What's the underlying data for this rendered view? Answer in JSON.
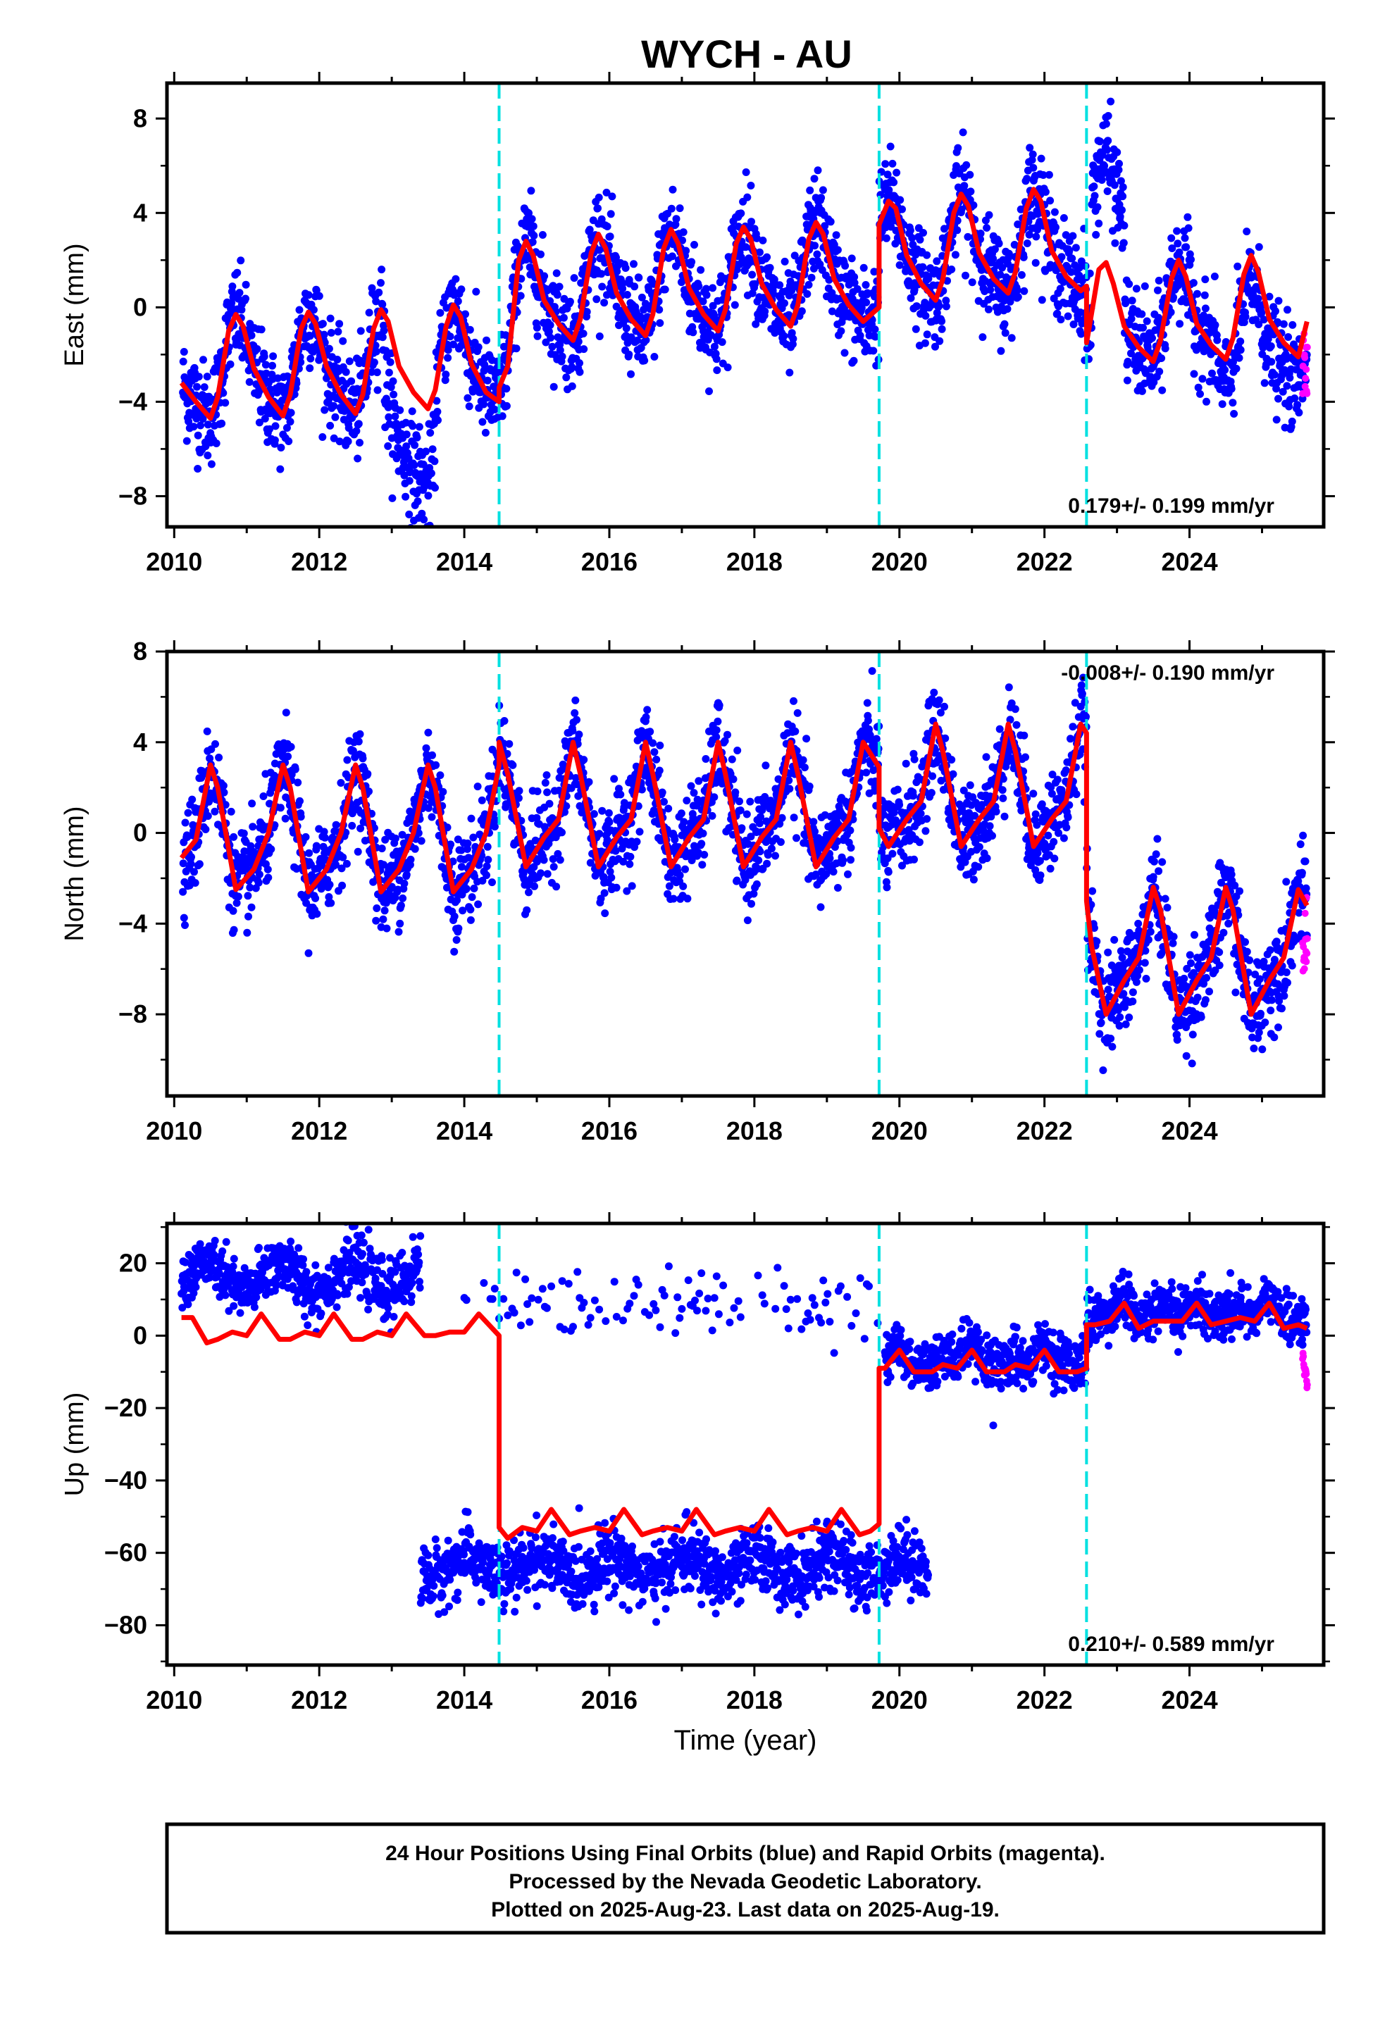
{
  "chart_data": {
    "type": "scatter",
    "title": "WYCH - AU",
    "xlabel": "Time (year)",
    "x_tick_labels": [
      "2010",
      "2012",
      "2014",
      "2016",
      "2018",
      "2020",
      "2022",
      "2024"
    ],
    "x_range": [
      2009.9,
      2025.85
    ],
    "offset_epochs": [
      2014.48,
      2019.72,
      2022.58
    ],
    "colors": {
      "final_orbits": "#0000ff",
      "rapid_orbits": "#ff00ff",
      "model": "#ff0000",
      "offsets": "#00e0e0"
    },
    "panels": [
      {
        "id": "east",
        "ylabel": "East (mm)",
        "ylim": [
          -9.3,
          9.5
        ],
        "y_tick_labels": [
          "8",
          "4",
          "0",
          "−4",
          "−8"
        ],
        "y_ticks": [
          8,
          4,
          0,
          -4,
          -8
        ],
        "rate": "0.179+/- 0.199 mm/yr",
        "rate_position": "bottom-right",
        "model_segments": [
          {
            "x": [
              2010.1,
              2010.3,
              2010.5,
              2010.6,
              2010.75,
              2010.85,
              2010.95,
              2011.1,
              2011.3,
              2011.5,
              2011.6,
              2011.75,
              2011.85,
              2011.95,
              2012.1,
              2012.3,
              2012.5,
              2012.6,
              2012.75,
              2012.85,
              2012.95,
              2013.1,
              2013.3,
              2013.5,
              2013.6,
              2013.75,
              2013.85,
              2013.95,
              2014.1,
              2014.3,
              2014.48
            ],
            "y": [
              -3.2,
              -4.0,
              -4.7,
              -3.8,
              -1.0,
              -0.3,
              -0.8,
              -2.6,
              -3.8,
              -4.6,
              -3.7,
              -0.9,
              -0.2,
              -0.7,
              -2.5,
              -3.7,
              -4.5,
              -3.7,
              -0.9,
              -0.1,
              -0.6,
              -2.5,
              -3.6,
              -4.3,
              -3.5,
              -0.8,
              0.1,
              -0.4,
              -2.4,
              -3.6,
              -4.0
            ]
          },
          {
            "x": [
              2014.48,
              2014.6,
              2014.75,
              2014.85,
              2014.95,
              2015.1,
              2015.3,
              2015.5,
              2015.6,
              2015.75,
              2015.85,
              2015.95,
              2016.1,
              2016.3,
              2016.5,
              2016.6,
              2016.75,
              2016.85,
              2016.95,
              2017.1,
              2017.3,
              2017.5,
              2017.6,
              2017.75,
              2017.85,
              2017.95,
              2018.1,
              2018.3,
              2018.5,
              2018.6,
              2018.75,
              2018.85,
              2018.95,
              2019.1,
              2019.3,
              2019.5,
              2019.72
            ],
            "y": [
              -3.4,
              -2.5,
              2.0,
              2.8,
              2.2,
              0.3,
              -0.7,
              -1.4,
              -0.5,
              2.3,
              3.1,
              2.5,
              0.6,
              -0.5,
              -1.2,
              -0.3,
              2.5,
              3.3,
              2.7,
              0.8,
              -0.3,
              -1.0,
              -0.1,
              2.7,
              3.4,
              2.9,
              1.0,
              -0.1,
              -0.8,
              0.1,
              2.9,
              3.6,
              3.1,
              1.2,
              0.1,
              -0.6,
              0.0
            ]
          },
          {
            "x": [
              2019.72,
              2019.85,
              2019.95,
              2020.1,
              2020.3,
              2020.5,
              2020.6,
              2020.75,
              2020.85,
              2020.95,
              2021.1,
              2021.3,
              2021.5,
              2021.6,
              2021.75,
              2021.85,
              2021.95,
              2022.1,
              2022.3,
              2022.5,
              2022.58
            ],
            "y": [
              3.5,
              4.5,
              4.2,
              2.2,
              1.0,
              0.3,
              1.2,
              4.0,
              4.8,
              4.3,
              2.3,
              1.2,
              0.6,
              1.5,
              4.2,
              5.0,
              4.5,
              2.4,
              1.3,
              0.7,
              0.9
            ]
          },
          {
            "x": [
              2022.58,
              2022.62,
              2022.75,
              2022.85,
              2022.95,
              2023.1,
              2023.3,
              2023.5,
              2023.6,
              2023.75,
              2023.85,
              2023.95,
              2024.1,
              2024.3,
              2024.5,
              2024.6,
              2024.75,
              2024.85,
              2024.95,
              2025.1,
              2025.3,
              2025.5,
              2025.62
            ],
            "y": [
              -1.5,
              -0.8,
              1.6,
              1.9,
              1.0,
              -0.8,
              -1.7,
              -2.3,
              -1.4,
              1.2,
              2.0,
              1.3,
              -0.7,
              -1.6,
              -2.2,
              -1.3,
              1.4,
              2.2,
              1.5,
              -0.5,
              -1.5,
              -2.1,
              -0.6
            ]
          }
        ]
      },
      {
        "id": "north",
        "ylabel": "North (mm)",
        "ylim": [
          -11.6,
          8.0
        ],
        "y_tick_labels": [
          "8",
          "4",
          "0",
          "−4",
          "−8"
        ],
        "y_ticks": [
          8,
          4,
          0,
          -4,
          -8
        ],
        "rate": "-0.008+/- 0.190 mm/yr",
        "rate_position": "top-right",
        "model_segments": [
          {
            "x": [
              2010.1,
              2010.3,
              2010.5,
              2010.6,
              2010.85,
              2011.1,
              2011.3,
              2011.5,
              2011.6,
              2011.85,
              2012.1,
              2012.3,
              2012.5,
              2012.6,
              2012.85,
              2013.1,
              2013.3,
              2013.5,
              2013.6,
              2013.85,
              2014.1,
              2014.3,
              2014.48
            ],
            "y": [
              -1.1,
              -0.3,
              3.0,
              2.0,
              -2.5,
              -1.6,
              0.0,
              3.0,
              2.0,
              -2.6,
              -1.6,
              0.0,
              3.0,
              2.0,
              -2.6,
              -1.6,
              0.0,
              3.0,
              2.0,
              -2.6,
              -1.6,
              0.0,
              3.0
            ]
          },
          {
            "x": [
              2014.48,
              2014.6,
              2014.85,
              2015.1,
              2015.3,
              2015.5,
              2015.6,
              2015.85,
              2016.1,
              2016.3,
              2016.5,
              2016.6,
              2016.85,
              2017.1,
              2017.3,
              2017.5,
              2017.6,
              2017.85,
              2018.1,
              2018.3,
              2018.5,
              2018.6,
              2018.85,
              2019.1,
              2019.3,
              2019.5,
              2019.72
            ],
            "y": [
              4.0,
              2.6,
              -1.5,
              -0.2,
              0.6,
              4.0,
              2.6,
              -1.5,
              -0.2,
              0.6,
              4.0,
              2.6,
              -1.5,
              -0.2,
              0.6,
              4.0,
              2.6,
              -1.5,
              -0.2,
              0.6,
              4.0,
              2.6,
              -1.5,
              -0.2,
              0.6,
              4.0,
              2.9
            ]
          },
          {
            "x": [
              2019.72,
              2019.85,
              2020.1,
              2020.3,
              2020.5,
              2020.6,
              2020.85,
              2021.1,
              2021.3,
              2021.5,
              2021.6,
              2021.85,
              2022.1,
              2022.3,
              2022.5,
              2022.58
            ],
            "y": [
              0.2,
              -0.6,
              0.6,
              1.4,
              4.8,
              3.6,
              -0.6,
              0.6,
              1.4,
              4.8,
              3.6,
              -0.6,
              0.6,
              1.4,
              4.8,
              4.4
            ]
          },
          {
            "x": [
              2022.58,
              2022.65,
              2022.85,
              2023.1,
              2023.3,
              2023.5,
              2023.6,
              2023.85,
              2024.1,
              2024.3,
              2024.5,
              2024.6,
              2024.85,
              2025.1,
              2025.3,
              2025.5,
              2025.62
            ],
            "y": [
              -3.0,
              -5.0,
              -8.0,
              -6.5,
              -5.5,
              -2.4,
              -3.4,
              -8.0,
              -6.5,
              -5.5,
              -2.4,
              -3.4,
              -8.0,
              -6.5,
              -5.5,
              -2.5,
              -3.2
            ]
          }
        ]
      },
      {
        "id": "up",
        "ylabel": "Up (mm)",
        "ylim": [
          -91,
          31
        ],
        "y_tick_labels": [
          "20",
          "0",
          "−20",
          "−40",
          "−60",
          "−80"
        ],
        "y_ticks": [
          20,
          0,
          -20,
          -40,
          -60,
          -80
        ],
        "rate": "0.210+/- 0.589 mm/yr",
        "rate_position": "bottom-right",
        "model_segments": [
          {
            "x": [
              2010.1,
              2010.25,
              2010.45,
              2010.6,
              2010.8,
              2011.0,
              2011.2,
              2011.45,
              2011.6,
              2011.8,
              2012.0,
              2012.2,
              2012.45,
              2012.6,
              2012.8,
              2013.0,
              2013.2,
              2013.45,
              2013.6,
              2013.8,
              2014.0,
              2014.2,
              2014.48
            ],
            "y": [
              5,
              5,
              -2,
              -1,
              1,
              0,
              6,
              -1,
              -1,
              1,
              0,
              6,
              -1,
              -1,
              1,
              0,
              6,
              0,
              0,
              1,
              1,
              6,
              0
            ]
          },
          {
            "x": [
              2014.48,
              2014.6,
              2014.8,
              2015.0,
              2015.2,
              2015.45,
              2015.6,
              2015.8,
              2016.0,
              2016.2,
              2016.45,
              2016.6,
              2016.8,
              2017.0,
              2017.2,
              2017.45,
              2017.6,
              2017.8,
              2018.0,
              2018.2,
              2018.45,
              2018.6,
              2018.8,
              2019.0,
              2019.2,
              2019.45,
              2019.6,
              2019.72
            ],
            "y": [
              -53,
              -56,
              -53,
              -54,
              -48,
              -55,
              -54,
              -53,
              -54,
              -48,
              -55,
              -54,
              -53,
              -54,
              -48,
              -55,
              -54,
              -53,
              -54,
              -48,
              -55,
              -54,
              -53,
              -54,
              -48,
              -55,
              -54,
              -52
            ]
          },
          {
            "x": [
              2019.72,
              2019.8,
              2020.0,
              2020.2,
              2020.45,
              2020.6,
              2020.8,
              2021.0,
              2021.2,
              2021.45,
              2021.6,
              2021.8,
              2022.0,
              2022.2,
              2022.45,
              2022.58
            ],
            "y": [
              -9,
              -9,
              -4,
              -10,
              -10,
              -8,
              -9,
              -4,
              -10,
              -10,
              -8,
              -9,
              -4,
              -10,
              -10,
              -9
            ]
          },
          {
            "x": [
              2022.58,
              2022.7,
              2022.9,
              2023.1,
              2023.3,
              2023.5,
              2023.7,
              2023.9,
              2024.1,
              2024.3,
              2024.5,
              2024.7,
              2024.9,
              2025.1,
              2025.3,
              2025.5,
              2025.62
            ],
            "y": [
              3,
              3,
              4,
              9,
              2,
              4,
              4,
              4,
              9,
              3,
              4,
              5,
              4,
              9,
              2,
              3,
              2
            ]
          }
        ]
      }
    ],
    "footer": [
      "24 Hour Positions Using Final Orbits (blue) and Rapid Orbits (magenta).",
      "Processed by the Nevada Geodetic Laboratory.",
      "Plotted on 2025-Aug-23. Last data on 2025-Aug-19."
    ]
  }
}
